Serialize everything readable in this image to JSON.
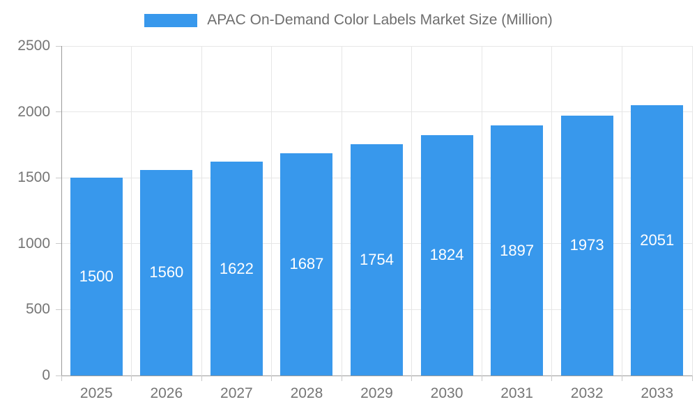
{
  "legend": {
    "label": "APAC On-Demand Color Labels Market Size (Million)"
  },
  "chart_data": {
    "type": "bar",
    "title": "APAC On-Demand Color Labels Market Size (Million)",
    "categories": [
      "2025",
      "2026",
      "2027",
      "2028",
      "2029",
      "2030",
      "2031",
      "2032",
      "2033"
    ],
    "values": [
      1500,
      1560,
      1622,
      1687,
      1754,
      1824,
      1897,
      1973,
      2051
    ],
    "series": [
      {
        "name": "APAC On-Demand Color Labels Market Size (Million)",
        "values": [
          1500,
          1560,
          1622,
          1687,
          1754,
          1824,
          1897,
          1973,
          2051
        ]
      }
    ],
    "xlabel": "",
    "ylabel": "",
    "ylim": [
      0,
      2500
    ],
    "ytick_step": 500,
    "ytick_labels": [
      "0",
      "500",
      "1000",
      "1500",
      "2000",
      "2500"
    ],
    "grid": true,
    "legend_position": "top",
    "value_labels_inside_bars": true,
    "colors": {
      "bar": "#3898ec",
      "bar_value_text": "#ffffff",
      "axis_text": "#757575",
      "legend_text": "#6e6e6e",
      "grid_line": "#e6e6e6",
      "axis_line": "#9a9a9a",
      "tick_mark": "#c9c9c9",
      "background": "#ffffff"
    }
  }
}
